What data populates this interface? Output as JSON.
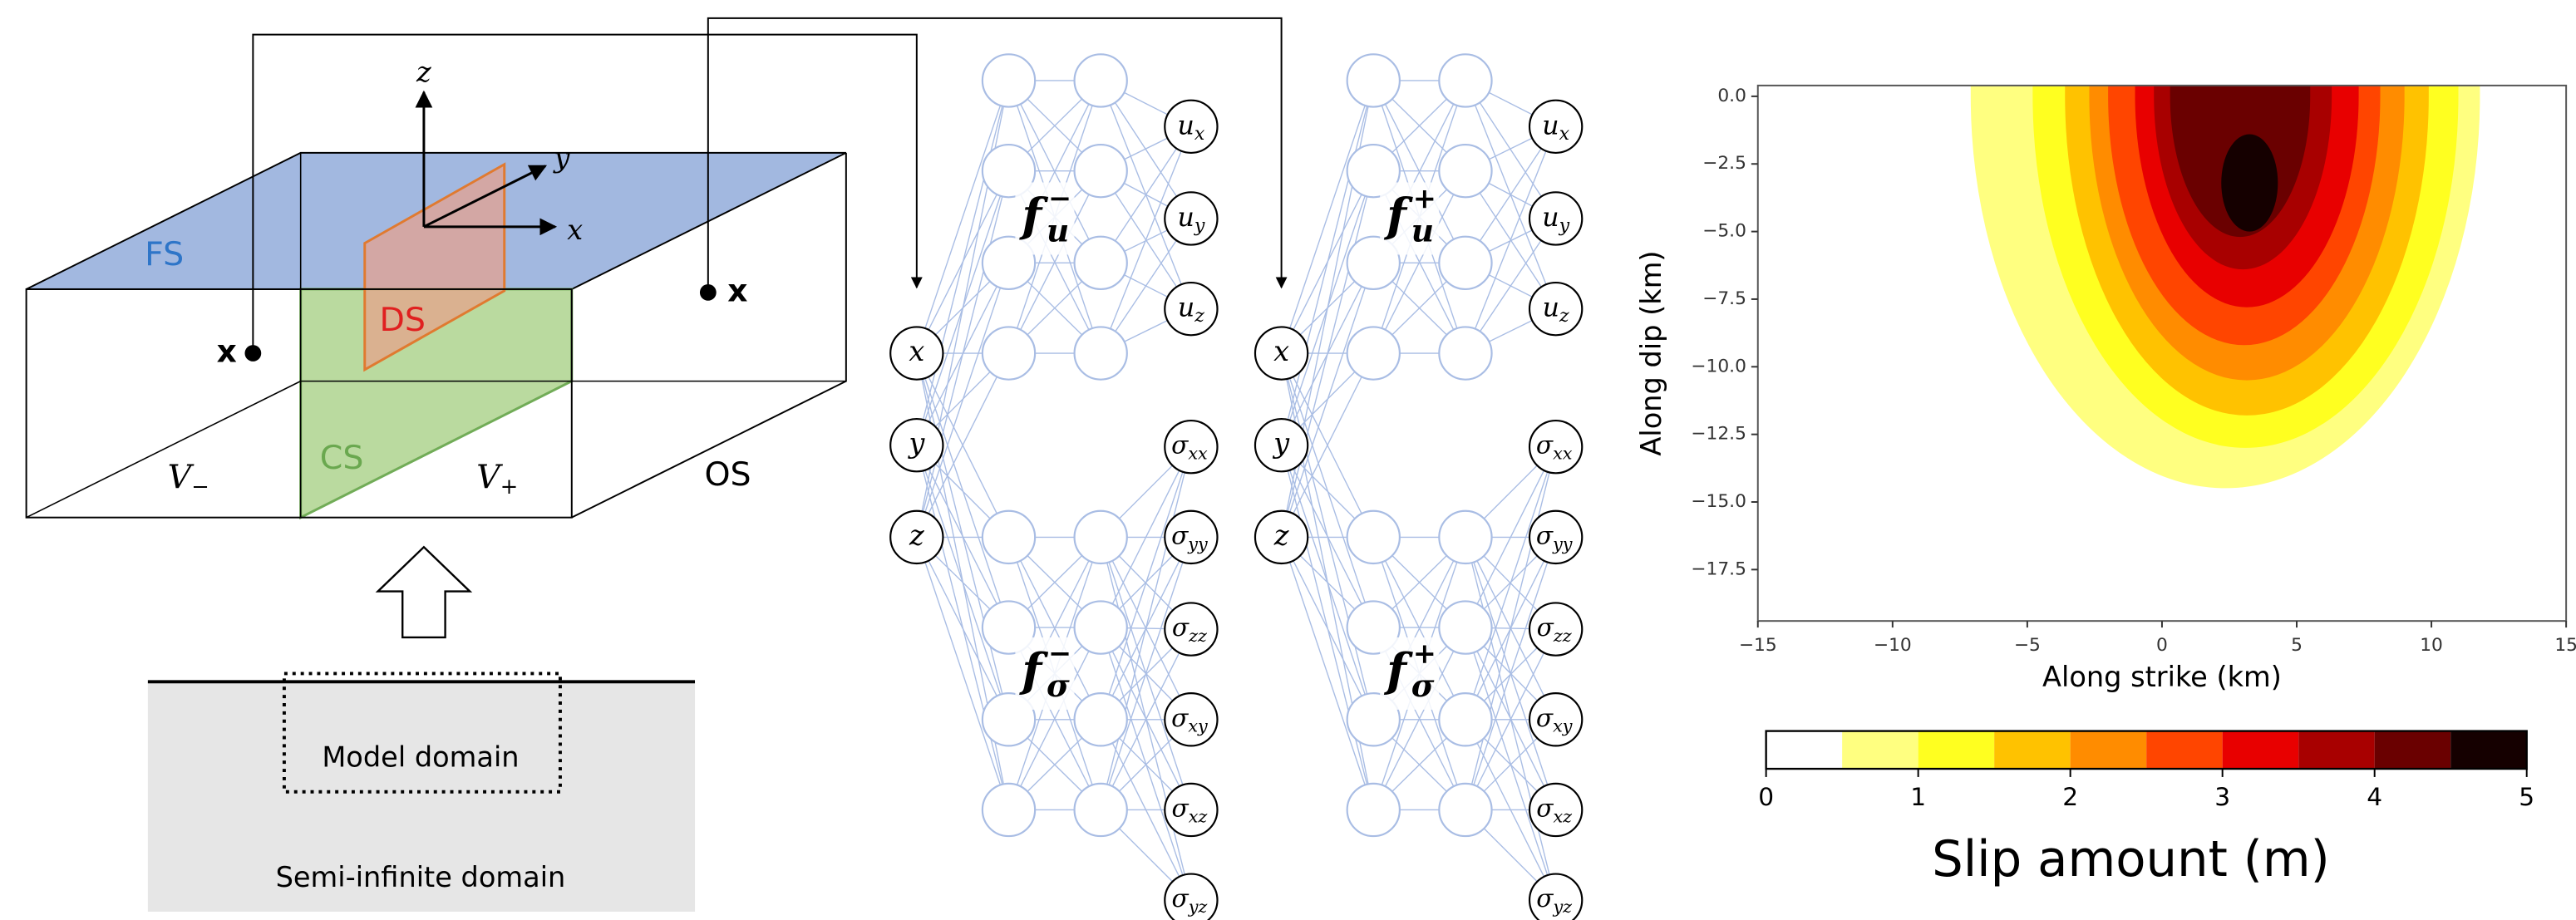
{
  "diagram": {
    "planes": {
      "fs": "FS",
      "ds": "DS",
      "cs": "CS",
      "os": "OS"
    },
    "volumes": [
      {
        "base": "V",
        "sub": "−"
      },
      {
        "base": "V",
        "sub": "+"
      }
    ],
    "axes": {
      "x": "x",
      "y": "y",
      "z": "z"
    },
    "points": [
      "x",
      "x"
    ],
    "model_domain": "Model domain",
    "semi_infinite_domain": "Semi-infinite domain"
  },
  "networks": [
    {
      "inputs": [
        "x",
        "y",
        "z"
      ],
      "functions": [
        {
          "base": "f",
          "sub": "u",
          "sup": "−"
        },
        {
          "base": "f",
          "sub": "σ",
          "sup": "−"
        }
      ],
      "outputs_u": [
        {
          "base": "u",
          "sub": "x"
        },
        {
          "base": "u",
          "sub": "y"
        },
        {
          "base": "u",
          "sub": "z"
        }
      ],
      "outputs_sigma": [
        {
          "base": "σ",
          "sub": "xx"
        },
        {
          "base": "σ",
          "sub": "yy"
        },
        {
          "base": "σ",
          "sub": "zz"
        },
        {
          "base": "σ",
          "sub": "xy"
        },
        {
          "base": "σ",
          "sub": "xz"
        },
        {
          "base": "σ",
          "sub": "yz"
        }
      ]
    },
    {
      "inputs": [
        "x",
        "y",
        "z"
      ],
      "functions": [
        {
          "base": "f",
          "sub": "u",
          "sup": "+"
        },
        {
          "base": "f",
          "sub": "σ",
          "sup": "+"
        }
      ],
      "outputs_u": [
        {
          "base": "u",
          "sub": "x"
        },
        {
          "base": "u",
          "sub": "y"
        },
        {
          "base": "u",
          "sub": "z"
        }
      ],
      "outputs_sigma": [
        {
          "base": "σ",
          "sub": "xx"
        },
        {
          "base": "σ",
          "sub": "yy"
        },
        {
          "base": "σ",
          "sub": "zz"
        },
        {
          "base": "σ",
          "sub": "xy"
        },
        {
          "base": "σ",
          "sub": "xz"
        },
        {
          "base": "σ",
          "sub": "yz"
        }
      ]
    }
  ],
  "chart_data": {
    "type": "contour",
    "xlabel": "Along strike (km)",
    "ylabel": "Along dip (km)",
    "xlim": [
      -15,
      15
    ],
    "xticks": [
      {
        "value": -15,
        "label": "−15"
      },
      {
        "value": -10,
        "label": "−10"
      },
      {
        "value": -5,
        "label": "−5"
      },
      0,
      5,
      10,
      15
    ],
    "ylim": [
      -19.4,
      0.4
    ],
    "yticks": [
      {
        "value": 0,
        "label": "0.0"
      },
      {
        "value": -2.5,
        "label": "−2.5"
      },
      {
        "value": -5,
        "label": "−5.0"
      },
      {
        "value": -7.5,
        "label": "−7.5"
      },
      {
        "value": -10,
        "label": "−10.0"
      },
      {
        "value": -12.5,
        "label": "−12.5"
      },
      {
        "value": -15,
        "label": "−15.0"
      },
      {
        "value": -17.5,
        "label": "−17.5"
      }
    ],
    "contours": [
      {
        "level": 0.5,
        "x": [
          -7.1,
          11.8
        ],
        "y": [
          0,
          -14.5
        ],
        "color": "#ffff80"
      },
      {
        "level": 1,
        "x": [
          -4.8,
          11.0
        ],
        "y": [
          0,
          -13.0
        ],
        "color": "#ffff20"
      },
      {
        "level": 1.5,
        "x": [
          -3.6,
          9.9
        ],
        "y": [
          0,
          -11.8
        ],
        "color": "#ffc200"
      },
      {
        "level": 2,
        "x": [
          -2.7,
          9.0
        ],
        "y": [
          0,
          -10.5
        ],
        "color": "#ff8c00"
      },
      {
        "level": 2.5,
        "x": [
          -2.0,
          8.1
        ],
        "y": [
          0,
          -9.2
        ],
        "color": "#ff4500"
      },
      {
        "level": 3,
        "x": [
          -1.0,
          7.3
        ],
        "y": [
          0,
          -7.8
        ],
        "color": "#e80000"
      },
      {
        "level": 3.5,
        "x": [
          -0.3,
          6.3
        ],
        "y": [
          0,
          -6.4
        ],
        "color": "#a80000"
      },
      {
        "level": 4,
        "x": [
          0.3,
          5.5
        ],
        "y": [
          0,
          -5.2
        ],
        "color": "#6a0000"
      },
      {
        "level": 4.5,
        "x": [
          2.2,
          4.3
        ],
        "y": [
          -1.4,
          -5.0
        ],
        "color": "#150000"
      }
    ],
    "colorbar": {
      "label": "Slip amount (m)",
      "bounds": [
        0,
        0.5,
        1,
        1.5,
        2,
        2.5,
        3,
        3.5,
        4,
        4.5,
        5
      ],
      "colors": [
        "#ffffff",
        "#ffff80",
        "#ffff20",
        "#ffc200",
        "#ff8c00",
        "#ff4500",
        "#e80000",
        "#a80000",
        "#6a0000",
        "#150000"
      ],
      "ticks": [
        0,
        1,
        2,
        3,
        4,
        5
      ]
    }
  }
}
